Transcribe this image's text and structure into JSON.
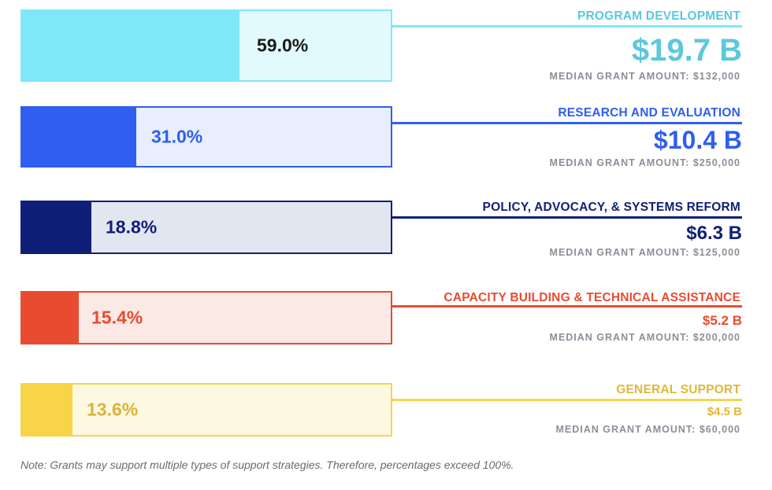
{
  "chart_data": {
    "type": "bar",
    "orientation": "horizontal",
    "categories": [
      "PROGRAM DEVELOPMENT",
      "RESEARCH AND EVALUATION",
      "POLICY, ADVOCACY, & SYSTEMS REFORM",
      "CAPACITY BUILDING & TECHNICAL ASSISTANCE",
      "GENERAL SUPPORT"
    ],
    "values": [
      59.0,
      31.0,
      18.8,
      15.4,
      13.6
    ],
    "value_labels": [
      "59.0%",
      "31.0%",
      "18.8%",
      "15.4%",
      "13.6%"
    ],
    "amount_labels": [
      "$19.7 B",
      "$10.4 B",
      "$6.3 B",
      "$5.2 B",
      "$4.5 B"
    ],
    "median_labels": [
      "MEDIAN GRANT AMOUNT: $132,000",
      "MEDIAN GRANT AMOUNT: $250,000",
      "MEDIAN GRANT AMOUNT: $125,000",
      "MEDIAN GRANT AMOUNT: $200,000",
      "MEDIAN GRANT AMOUNT: $60,000"
    ],
    "colors": [
      "#7fe8f8",
      "#2f5ef0",
      "#0f1f78",
      "#e84c30",
      "#f8d448"
    ],
    "background_colors": [
      "#e2f9fd",
      "#e8eefc",
      "#e2e6f1",
      "#fbe9e6",
      "#fdf8e0"
    ],
    "percent_text_colors": [
      "#1a1a1a",
      "#2f5ef0",
      "#0f1f78",
      "#e84c30",
      "#d9b43a"
    ],
    "label_colors": [
      "#5cc8dc",
      "#2f5ef0",
      "#0f1f78",
      "#e84c30",
      "#e0b838"
    ],
    "xlim": [
      0,
      100
    ],
    "note": "Note: Grants may support multiple types of support strategies. Therefore, percentages exceed 100%."
  }
}
